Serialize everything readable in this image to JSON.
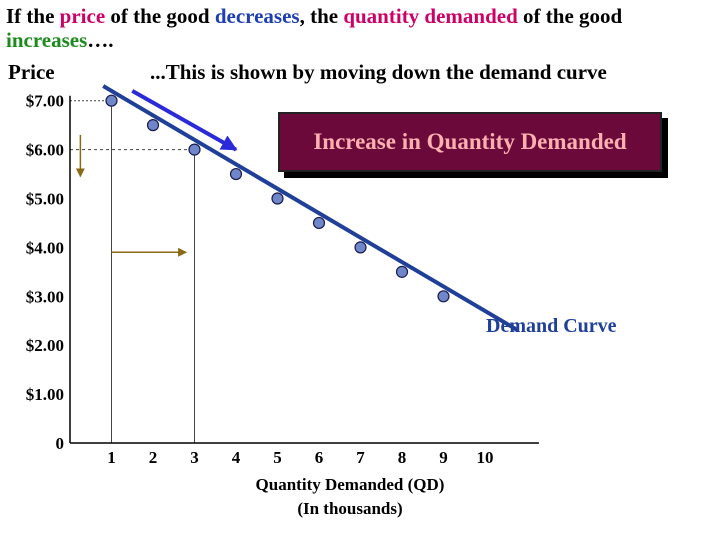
{
  "header": {
    "title_parts": [
      {
        "text": "If the ",
        "color": "#000000"
      },
      {
        "text": "price",
        "color": "#cc0066"
      },
      {
        "text": " of the good ",
        "color": "#000000"
      },
      {
        "text": "decreases",
        "color": "#1f3fb0"
      },
      {
        "text": ", the ",
        "color": "#000000"
      },
      {
        "text": "quantity demanded",
        "color": "#cc0066"
      },
      {
        "text": " of the good ",
        "color": "#000000"
      },
      {
        "text": "increases",
        "color": "#1d8a1d"
      },
      {
        "text": "….",
        "color": "#000000"
      }
    ],
    "subtitle": "...This is shown by moving down the demand curve"
  },
  "callout": {
    "text": "Increase in Quantity Demanded",
    "text_color": "#ffb0b0",
    "background": "#6b0a3a"
  },
  "colors": {
    "curve": "#1f3f99",
    "point_fill": "#6f86c8",
    "point_stroke": "#1a1a4d",
    "shift_arrow": "#2a2ad8",
    "guide_arrow": "#8b6914",
    "guide_line": "#444444"
  },
  "chart_data": {
    "type": "line",
    "ylabel": "Price",
    "xlabel": "Quantity Demanded (QD)",
    "xlabel_note": "(In thousands)",
    "y_ticks": [
      "$7.00",
      "$6.00",
      "$5.00",
      "$4.00",
      "$3.00",
      "$2.00",
      "$1.00",
      "0"
    ],
    "x_ticks": [
      "1",
      "2",
      "3",
      "4",
      "5",
      "6",
      "7",
      "8",
      "9",
      "10"
    ],
    "xlim": [
      0,
      10
    ],
    "ylim": [
      0,
      7
    ],
    "series": [
      {
        "name": "Demand Curve",
        "x": [
          1,
          2,
          3,
          4,
          5,
          6,
          7,
          8,
          9
        ],
        "y": [
          7.0,
          6.5,
          6.0,
          5.5,
          5.0,
          4.5,
          4.0,
          3.5,
          3.0
        ]
      }
    ],
    "curve_extent": {
      "x": [
        0.8,
        10.8
      ],
      "y": [
        7.3,
        2.3
      ]
    },
    "highlight": {
      "from": {
        "x": 1,
        "y": 7.0
      },
      "to": {
        "x": 3,
        "y": 6.0
      }
    },
    "shift_arrow": {
      "from": {
        "x": 1.5,
        "y": 7.2
      },
      "to": {
        "x": 4.0,
        "y": 6.0
      }
    },
    "price_arrow": {
      "x": 0.25,
      "from": 6.3,
      "to": 5.45
    },
    "quantity_arrow": {
      "y": 3.9,
      "from": 1.0,
      "to": 2.8
    }
  }
}
